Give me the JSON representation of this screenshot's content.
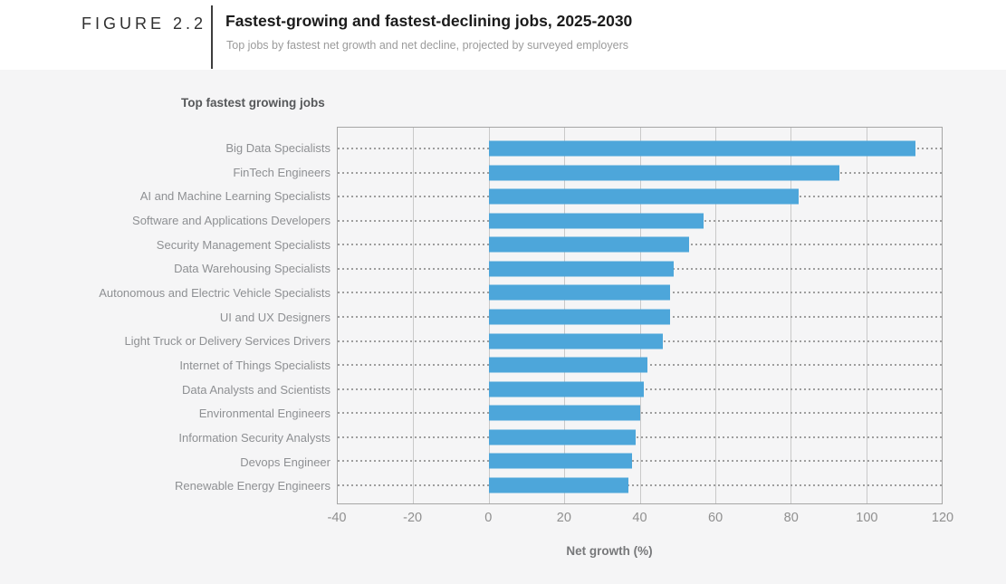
{
  "header": {
    "figure_label": "FIGURE 2.2",
    "title": "Fastest-growing and fastest-declining jobs, 2025-2030",
    "subtitle": "Top jobs by fastest net growth and net decline, projected by surveyed employers"
  },
  "chart_data": {
    "type": "bar",
    "orientation": "horizontal",
    "title": "Top fastest growing jobs",
    "xlabel": "Net growth (%)",
    "categories": [
      "Big Data Specialists",
      "FinTech Engineers",
      "AI and Machine Learning Specialists",
      "Software and Applications Developers",
      "Security Management Specialists",
      "Data Warehousing Specialists",
      "Autonomous and Electric Vehicle Specialists",
      "UI and UX Designers",
      "Light Truck or Delivery Services Drivers",
      "Internet of Things Specialists",
      "Data Analysts and Scientists",
      "Environmental Engineers",
      "Information Security Analysts",
      "Devops Engineer",
      "Renewable Energy Engineers"
    ],
    "values": [
      113,
      93,
      82,
      57,
      53,
      49,
      48,
      48,
      46,
      42,
      41,
      40,
      39,
      38,
      37
    ],
    "xlim": [
      -40,
      120
    ],
    "xticks": [
      -40,
      -20,
      0,
      20,
      40,
      60,
      80,
      100,
      120
    ],
    "grid": true,
    "legend": "none",
    "bar_color": "#4DA6DA"
  },
  "colors": {
    "accent_bar": "#4DA6DA",
    "page_background": "#F5F5F6",
    "header_background": "#FFFFFF"
  }
}
